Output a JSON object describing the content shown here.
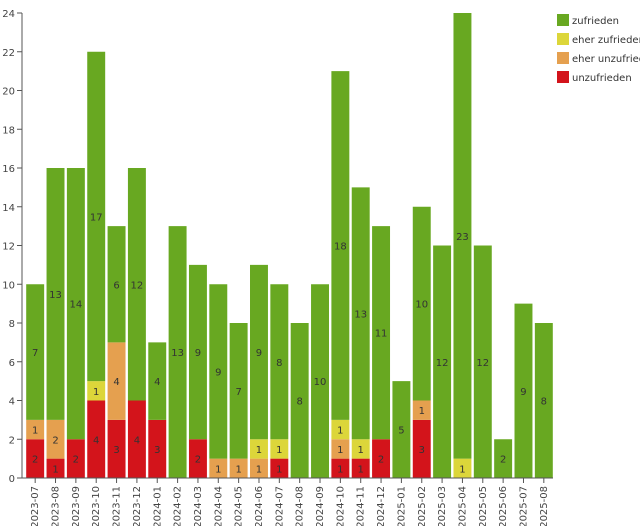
{
  "chart_data": {
    "type": "bar",
    "stacked": true,
    "title": "",
    "xlabel": "",
    "ylabel": "",
    "ylim": [
      0,
      24
    ],
    "yticks": [
      0,
      2,
      4,
      6,
      8,
      10,
      12,
      14,
      16,
      18,
      20,
      22,
      24
    ],
    "legend_position": "top-right",
    "categories": [
      "2023-07",
      "2023-08",
      "2023-09",
      "2023-10",
      "2023-11",
      "2023-12",
      "2024-01",
      "2024-02",
      "2024-03",
      "2024-04",
      "2024-05",
      "2024-06",
      "2024-07",
      "2024-08",
      "2024-09",
      "2024-10",
      "2024-11",
      "2024-12",
      "2025-01",
      "2025-02",
      "2025-03",
      "2025-04",
      "2025-05",
      "2025-06",
      "2025-07",
      "2025-08"
    ],
    "series": [
      {
        "name": "unzufrieden",
        "color": "#d3141b",
        "values": [
          2,
          1,
          2,
          4,
          3,
          4,
          3,
          0,
          2,
          0,
          0,
          0,
          1,
          0,
          0,
          1,
          1,
          2,
          0,
          3,
          0,
          0,
          0,
          0,
          0,
          0
        ]
      },
      {
        "name": "eher unzufrieden",
        "color": "#e5a04f",
        "values": [
          1,
          2,
          0,
          0,
          4,
          0,
          0,
          0,
          0,
          1,
          1,
          1,
          0,
          0,
          0,
          1,
          0,
          0,
          0,
          1,
          0,
          0,
          0,
          0,
          0,
          0
        ]
      },
      {
        "name": "eher zufrieden",
        "color": "#dcd63a",
        "values": [
          0,
          0,
          0,
          1,
          0,
          0,
          0,
          0,
          0,
          0,
          0,
          1,
          1,
          0,
          0,
          1,
          1,
          0,
          0,
          0,
          0,
          1,
          0,
          0,
          0,
          0
        ]
      },
      {
        "name": "zufrieden",
        "color": "#68a821",
        "values": [
          7,
          13,
          14,
          17,
          6,
          12,
          4,
          13,
          9,
          9,
          7,
          9,
          8,
          8,
          10,
          18,
          13,
          11,
          5,
          10,
          12,
          23,
          12,
          2,
          9,
          8
        ]
      }
    ],
    "legend_order": [
      "zufrieden",
      "eher zufrieden",
      "eher unzufrieden",
      "unzufrieden"
    ]
  }
}
